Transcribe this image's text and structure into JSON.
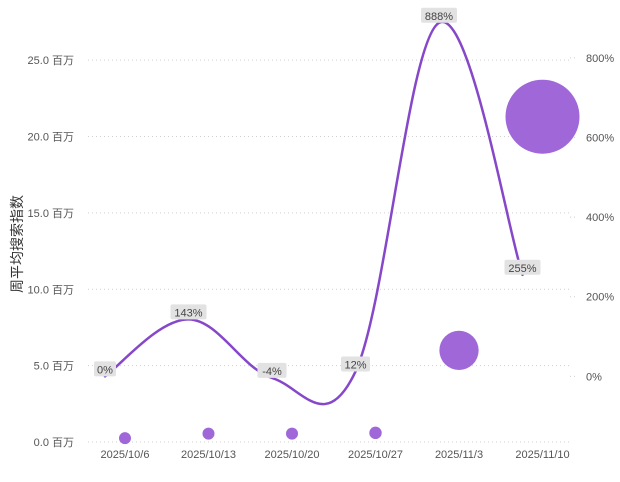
{
  "chart_data": {
    "type": "bubble-line-combo",
    "ylabel": "周平均搜索指数",
    "categories": [
      "2025/10/6",
      "2025/10/13",
      "2025/10/20",
      "2025/10/27",
      "2025/11/3",
      "2025/11/10"
    ],
    "left_axis": {
      "ticks": [
        "0.0 百万",
        "5.0 百万",
        "10.0 百万",
        "15.0 百万",
        "20.0 百万",
        "25.0 百万"
      ],
      "tick_values": [
        0,
        5,
        10,
        15,
        20,
        25
      ],
      "range": [
        0,
        27.5
      ]
    },
    "right_axis": {
      "ticks": [
        "0%",
        "200%",
        "400%",
        "600%",
        "800%"
      ],
      "tick_values": [
        0,
        200,
        400,
        600,
        800
      ],
      "range": [
        -165,
        890
      ]
    },
    "bubble_series": {
      "values": [
        0.25,
        0.55,
        0.55,
        0.6,
        6.0,
        21.3
      ],
      "color": "#9b5fd6"
    },
    "line_series": {
      "values": [
        0,
        143,
        -4,
        12,
        888,
        255
      ],
      "labels": [
        "0%",
        "143%",
        "-4%",
        "12%",
        "888%",
        "255%"
      ],
      "color": "#8647c9"
    },
    "grid": true
  }
}
